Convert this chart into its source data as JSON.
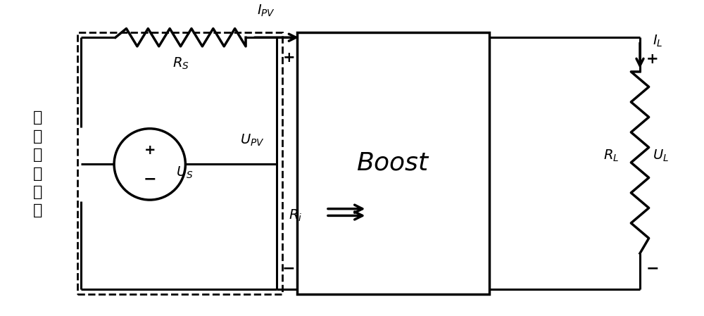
{
  "bg_color": "#ffffff",
  "line_color": "#000000",
  "label_pv_model": "光伏组件模型",
  "label_boost": "Boost",
  "label_Rs": "$R_S$",
  "label_Us": "$U_S$",
  "label_Upv": "$U_{PV}$",
  "label_Ipv": "$I_{PV}$",
  "label_Ri": "$R_i$",
  "label_RL": "$R_L$",
  "label_UL": "$U_L$",
  "label_IL": "$I_L$",
  "lw": 2.2
}
